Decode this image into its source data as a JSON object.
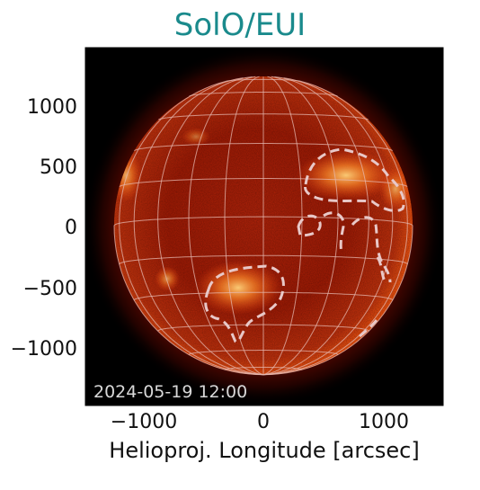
{
  "title": "SolO/EUI",
  "timestamp": "2024-05-19 12:00",
  "xlabel": "Helioproj. Longitude [arcsec]",
  "x_ticks": [
    "−1000",
    "0",
    "1000"
  ],
  "y_ticks": [
    "1000",
    "500",
    "0",
    "−500",
    "−1000"
  ],
  "colors": {
    "title": "#1a8a8c",
    "background": "#000000",
    "disk_core": "#ff6a1a",
    "disk_mid": "#b81d05",
    "disk_limb": "#7a0d00",
    "grid": "#e6b8b0",
    "contour": "#e8c8c8",
    "timestamp": "#d8d8d8"
  },
  "image": {
    "type": "solar EUV full-disk image",
    "colormap": "red-hot",
    "features": [
      "coronal grid overlay",
      "dashed contours around active regions"
    ]
  }
}
